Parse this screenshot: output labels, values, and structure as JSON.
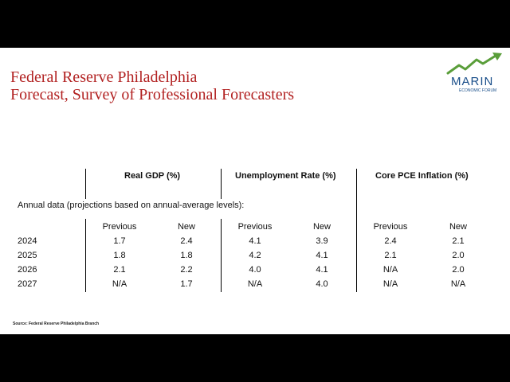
{
  "title": {
    "line1": "Federal Reserve Philadelphia",
    "line2": "Forecast, Survey of Professional Forecasters"
  },
  "logo": {
    "name": "MARIN",
    "subtitle": "ECONOMIC FORUM",
    "colors": {
      "arrow": "#5a9e3a",
      "text": "#1a4f8a"
    }
  },
  "table": {
    "groups": [
      "Real GDP (%)",
      "Unemployment Rate (%)",
      "Core PCE Inflation (%)"
    ],
    "annual_note": "Annual data (projections based on annual-average levels):",
    "subheaders": [
      "Previous",
      "New",
      "Previous",
      "New",
      "Previous",
      "New"
    ],
    "rows": [
      {
        "year": "2024",
        "values": [
          "1.7",
          "2.4",
          "4.1",
          "3.9",
          "2.4",
          "2.1"
        ]
      },
      {
        "year": "2025",
        "values": [
          "1.8",
          "1.8",
          "4.2",
          "4.1",
          "2.1",
          "2.0"
        ]
      },
      {
        "year": "2026",
        "values": [
          "2.1",
          "2.2",
          "4.0",
          "4.1",
          "N/A",
          "2.0"
        ]
      },
      {
        "year": "2027",
        "values": [
          "N/A",
          "1.7",
          "N/A",
          "4.0",
          "N/A",
          "N/A"
        ]
      }
    ]
  },
  "source": "Source: Federal Reserve Philadelphia Branch",
  "colors": {
    "title": "#b22222",
    "background": "#ffffff",
    "letterbox": "#000000"
  }
}
